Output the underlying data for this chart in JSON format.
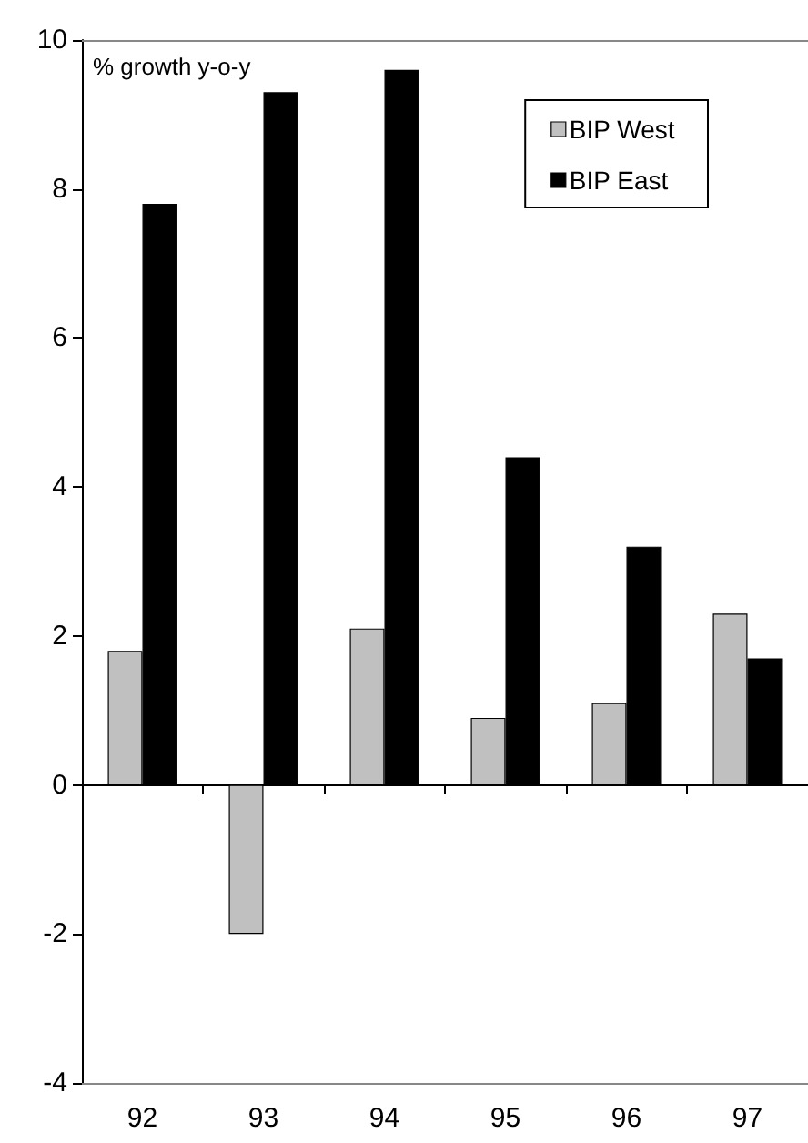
{
  "chart_data": {
    "type": "bar",
    "categories": [
      "92",
      "93",
      "94",
      "95",
      "96",
      "97"
    ],
    "series": [
      {
        "name": "BIP West",
        "color": "#c0c0c0",
        "values": [
          1.8,
          -2.0,
          2.1,
          0.9,
          1.1,
          2.3
        ]
      },
      {
        "name": "BIP East",
        "color": "#000000",
        "values": [
          7.8,
          9.3,
          9.6,
          4.4,
          3.2,
          1.7
        ]
      }
    ],
    "ylim": [
      -4,
      10
    ],
    "yticks": [
      -4,
      -2,
      0,
      2,
      4,
      6,
      8,
      10
    ],
    "legend": "top right",
    "annotations": [
      "% growth y-o-y"
    ]
  }
}
